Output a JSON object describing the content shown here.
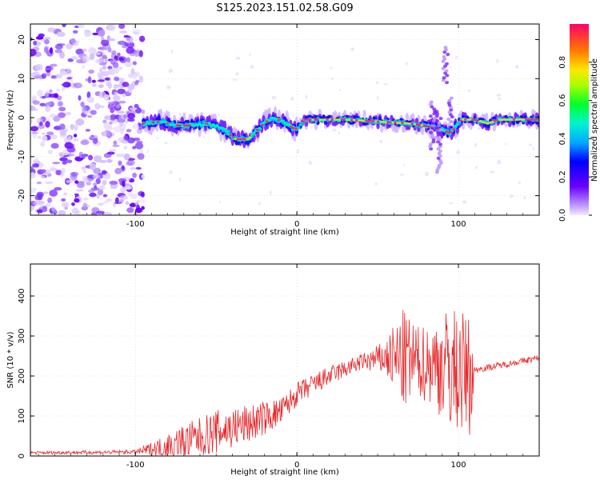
{
  "title": "S125.2023.151.02.58.G09",
  "chart_data": [
    {
      "type": "heatmap",
      "xlabel": "Height of straight line (km)",
      "ylabel": "Frequency (Hz)",
      "xlim": [
        -165,
        150
      ],
      "ylim": [
        -25,
        24
      ],
      "xticks": [
        -100,
        0,
        100
      ],
      "yticks": [
        -20,
        -10,
        0,
        10,
        20
      ],
      "grid": true,
      "colormap": "rainbow",
      "colors": {
        "low": "#efe6ff",
        "mid_low": "#6a00ff",
        "mid": "#00ff9a",
        "mid_high": "#ffd400",
        "high": "#ff0040"
      },
      "colorbar": {
        "label": "Normalized spectral amplitude",
        "range": [
          0,
          1
        ],
        "ticks": [
          0.0,
          0.2,
          0.4,
          0.6,
          0.8
        ],
        "tick_labels": [
          "0.0",
          "0.2",
          "0.4",
          "0.6",
          "0.8"
        ]
      },
      "noise_region_x": [
        -165,
        -95
      ],
      "ridge": {
        "x": [
          -95,
          -85,
          -75,
          -65,
          -55,
          -45,
          -38,
          -30,
          -22,
          -15,
          -8,
          -3,
          0,
          5,
          15,
          30,
          50,
          70,
          85,
          95,
          102,
          110,
          118,
          125,
          150
        ],
        "y": [
          -1.5,
          -1,
          -2,
          -2,
          -1.5,
          -3,
          -5.5,
          -5.5,
          -2,
          0,
          -1,
          -2.5,
          -3,
          -0.5,
          -0.5,
          -0.5,
          -1,
          -1.5,
          -2.5,
          -4,
          -0.5,
          -0.5,
          -1.5,
          -0.5,
          -0.5
        ]
      }
    },
    {
      "type": "line",
      "xlabel": "Height of straight line (km)",
      "ylabel": "SNR (10 * v/v)",
      "xlim": [
        -165,
        150
      ],
      "ylim": [
        0,
        480
      ],
      "xticks": [
        -100,
        0,
        100
      ],
      "yticks": [
        0,
        100,
        200,
        300,
        400
      ],
      "grid": true,
      "color": "#e8272a",
      "envelope": {
        "x": [
          -165,
          -100,
          -85,
          -70,
          -50,
          -30,
          -10,
          0,
          20,
          40,
          55,
          65,
          75,
          85,
          95,
          108,
          110,
          130,
          150
        ],
        "mean": [
          8,
          10,
          20,
          35,
          60,
          80,
          110,
          155,
          200,
          235,
          245,
          240,
          235,
          230,
          220,
          200,
          215,
          230,
          245
        ],
        "amp": [
          4,
          5,
          25,
          45,
          55,
          50,
          35,
          30,
          25,
          20,
          45,
          130,
          90,
          110,
          160,
          150,
          8,
          8,
          8
        ]
      }
    }
  ]
}
